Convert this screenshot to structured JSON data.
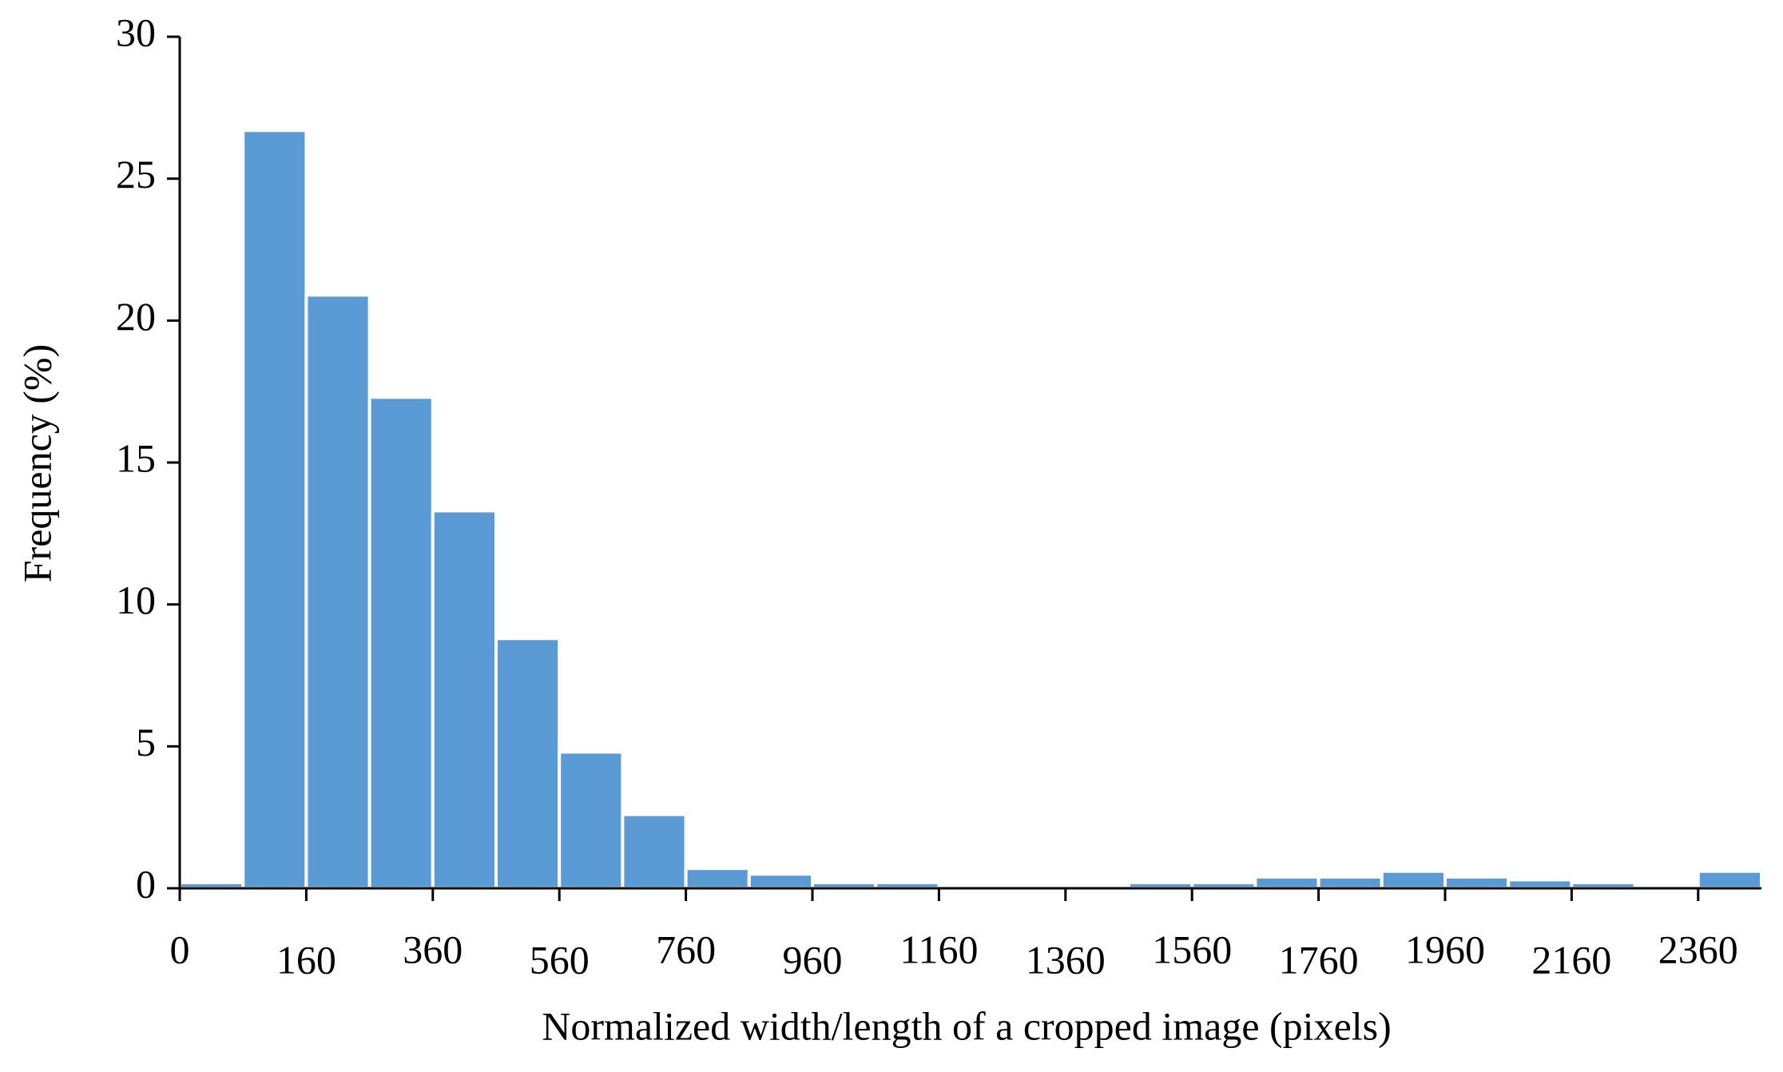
{
  "chart_data": {
    "type": "histogram",
    "x_label": "Normalized width/length of a cropped image (pixels)",
    "y_label": "Frequency (%)",
    "bins": [
      0,
      null,
      160,
      null,
      360,
      null,
      560,
      null,
      760,
      null,
      960,
      null,
      1160,
      null,
      1360,
      null,
      1560,
      null,
      1760,
      null,
      1960,
      null,
      2160,
      null,
      2360,
      null
    ],
    "values": [
      0.2,
      26.7,
      20.9,
      17.3,
      13.3,
      8.8,
      4.8,
      2.6,
      0.7,
      0.5,
      0.2,
      0.2,
      0,
      0,
      0,
      0.2,
      0.2,
      0.4,
      0.4,
      0.6,
      0.4,
      0.3,
      0.2,
      0,
      0.6
    ],
    "color": "#5b9bd5",
    "ylim": [
      0,
      30
    ],
    "yticks": [
      0,
      5,
      10,
      15,
      20,
      25,
      30
    ]
  }
}
